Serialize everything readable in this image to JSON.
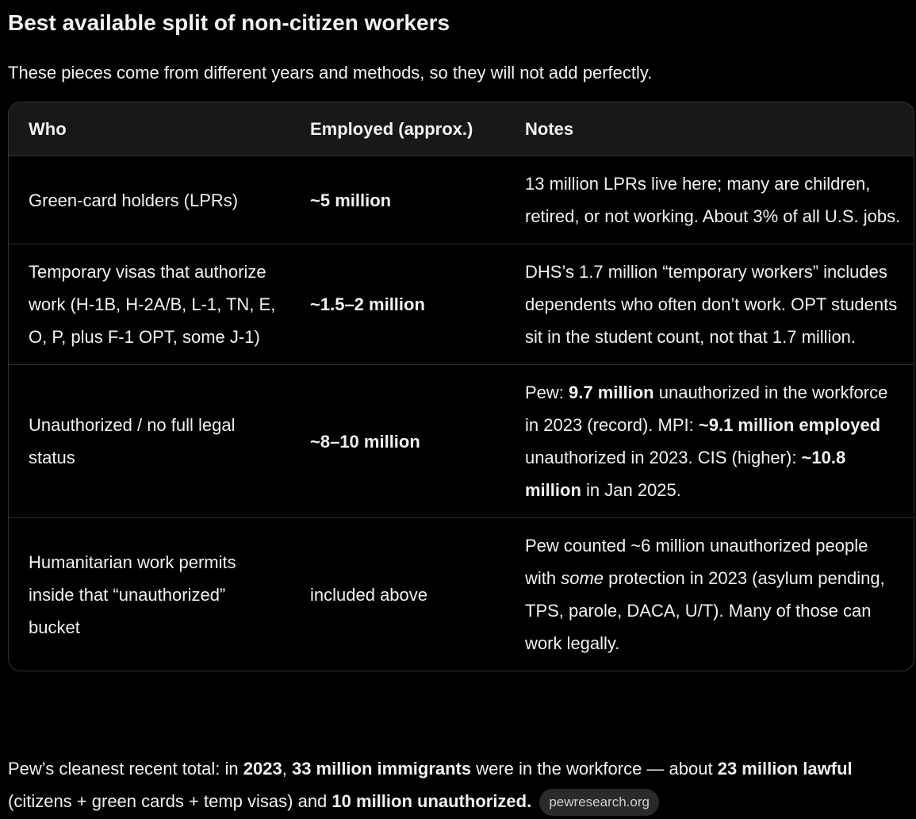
{
  "title": "Best available split of non-citizen workers",
  "subtitle": "These pieces come from different years and methods, so they will not add perfectly.",
  "table": {
    "header": [
      "Who",
      "Employed (approx.)",
      "Notes"
    ],
    "rows": [
      [
        [
          {
            "text": "Green-card holders (LPRs)"
          }
        ],
        [
          {
            "text": "~5 million",
            "style": "bold"
          }
        ],
        [
          {
            "text": "13 million LPRs live here; many are children, retired, or not working. About 3% of all U.S. jobs."
          }
        ]
      ],
      [
        [
          {
            "text": "Temporary visas that authorize work (H-1B, H-2A/B, L-1, TN, E, O, P, plus F-1 OPT, some J-1)"
          }
        ],
        [
          {
            "text": "~1.5–2 million",
            "style": "bold"
          }
        ],
        [
          {
            "text": "DHS’s 1.7 million “temporary workers” includes dependents who often don’t work. OPT students sit in the student count, not that 1.7 million."
          }
        ]
      ],
      [
        [
          {
            "text": "Unauthorized / no full legal status"
          }
        ],
        [
          {
            "text": "~8–10 million",
            "style": "bold"
          }
        ],
        [
          {
            "text": "Pew: "
          },
          {
            "text": "9.7 million",
            "style": "bold"
          },
          {
            "text": " unauthorized in the workforce in 2023 (record). MPI: "
          },
          {
            "text": "~9.1 million employed",
            "style": "bold"
          },
          {
            "text": " unauthorized in 2023. CIS (higher): "
          },
          {
            "text": "~10.8 million",
            "style": "bold"
          },
          {
            "text": " in Jan 2025."
          }
        ]
      ],
      [
        [
          {
            "text": "Humanitarian work permits inside that “unauthorized” bucket"
          }
        ],
        [
          {
            "text": "included above"
          }
        ],
        [
          {
            "text": "Pew counted ~6 million unauthorized people with "
          },
          {
            "text": "some",
            "style": "italic"
          },
          {
            "text": " protection in 2023 (asylum pending, TPS, parole, DACA, U/T). Many of those can work legally."
          }
        ]
      ]
    ]
  },
  "footer": {
    "text": [
      {
        "text": "Pew’s cleanest recent total: in "
      },
      {
        "text": "2023",
        "style": "bold"
      },
      {
        "text": ", "
      },
      {
        "text": "33 million immigrants",
        "style": "bold"
      },
      {
        "text": " were in the workforce — about "
      },
      {
        "text": "23 million lawful",
        "style": "bold"
      },
      {
        "text": " (citizens + green cards + temp visas) and "
      },
      {
        "text": "10 million unauthorized.",
        "style": "bold"
      }
    ],
    "source": "pewresearch.org"
  }
}
